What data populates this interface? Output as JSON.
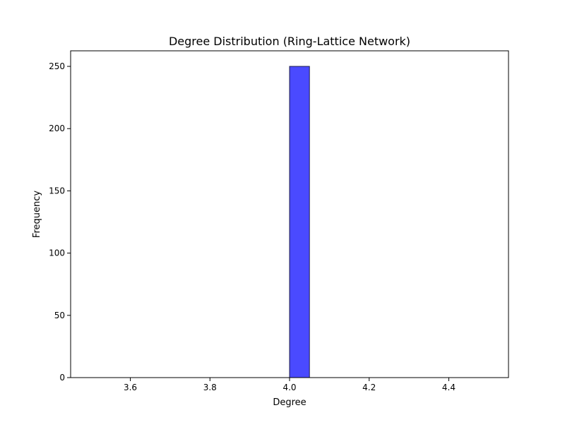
{
  "chart_data": {
    "type": "bar",
    "title": "Degree Distribution (Ring-Lattice Network)",
    "xlabel": "Degree",
    "ylabel": "Frequency",
    "xlim": [
      3.45,
      4.55
    ],
    "ylim": [
      0,
      262.5
    ],
    "x_ticks": [
      3.6,
      3.8,
      4.0,
      4.2,
      4.4
    ],
    "x_tick_labels": [
      "3.6",
      "3.8",
      "4.0",
      "4.2",
      "4.4"
    ],
    "y_ticks": [
      0,
      50,
      100,
      150,
      200,
      250
    ],
    "y_tick_labels": [
      "0",
      "50",
      "100",
      "150",
      "200",
      "250"
    ],
    "bin_edges": [
      3.5,
      3.55,
      3.6,
      3.65,
      3.7,
      3.75,
      3.8,
      3.85,
      3.9,
      3.95,
      4.0,
      4.05,
      4.1,
      4.15,
      4.2,
      4.25,
      4.3,
      4.35,
      4.4,
      4.45,
      4.5
    ],
    "counts": [
      0,
      0,
      0,
      0,
      0,
      0,
      0,
      0,
      0,
      0,
      250,
      0,
      0,
      0,
      0,
      0,
      0,
      0,
      0,
      0
    ],
    "grid": false,
    "legend": "none",
    "colors": {
      "bar_fill": "#4a4aff",
      "bar_edge": "#1c1c4a",
      "axes": "#000000",
      "background": "#ffffff"
    }
  }
}
